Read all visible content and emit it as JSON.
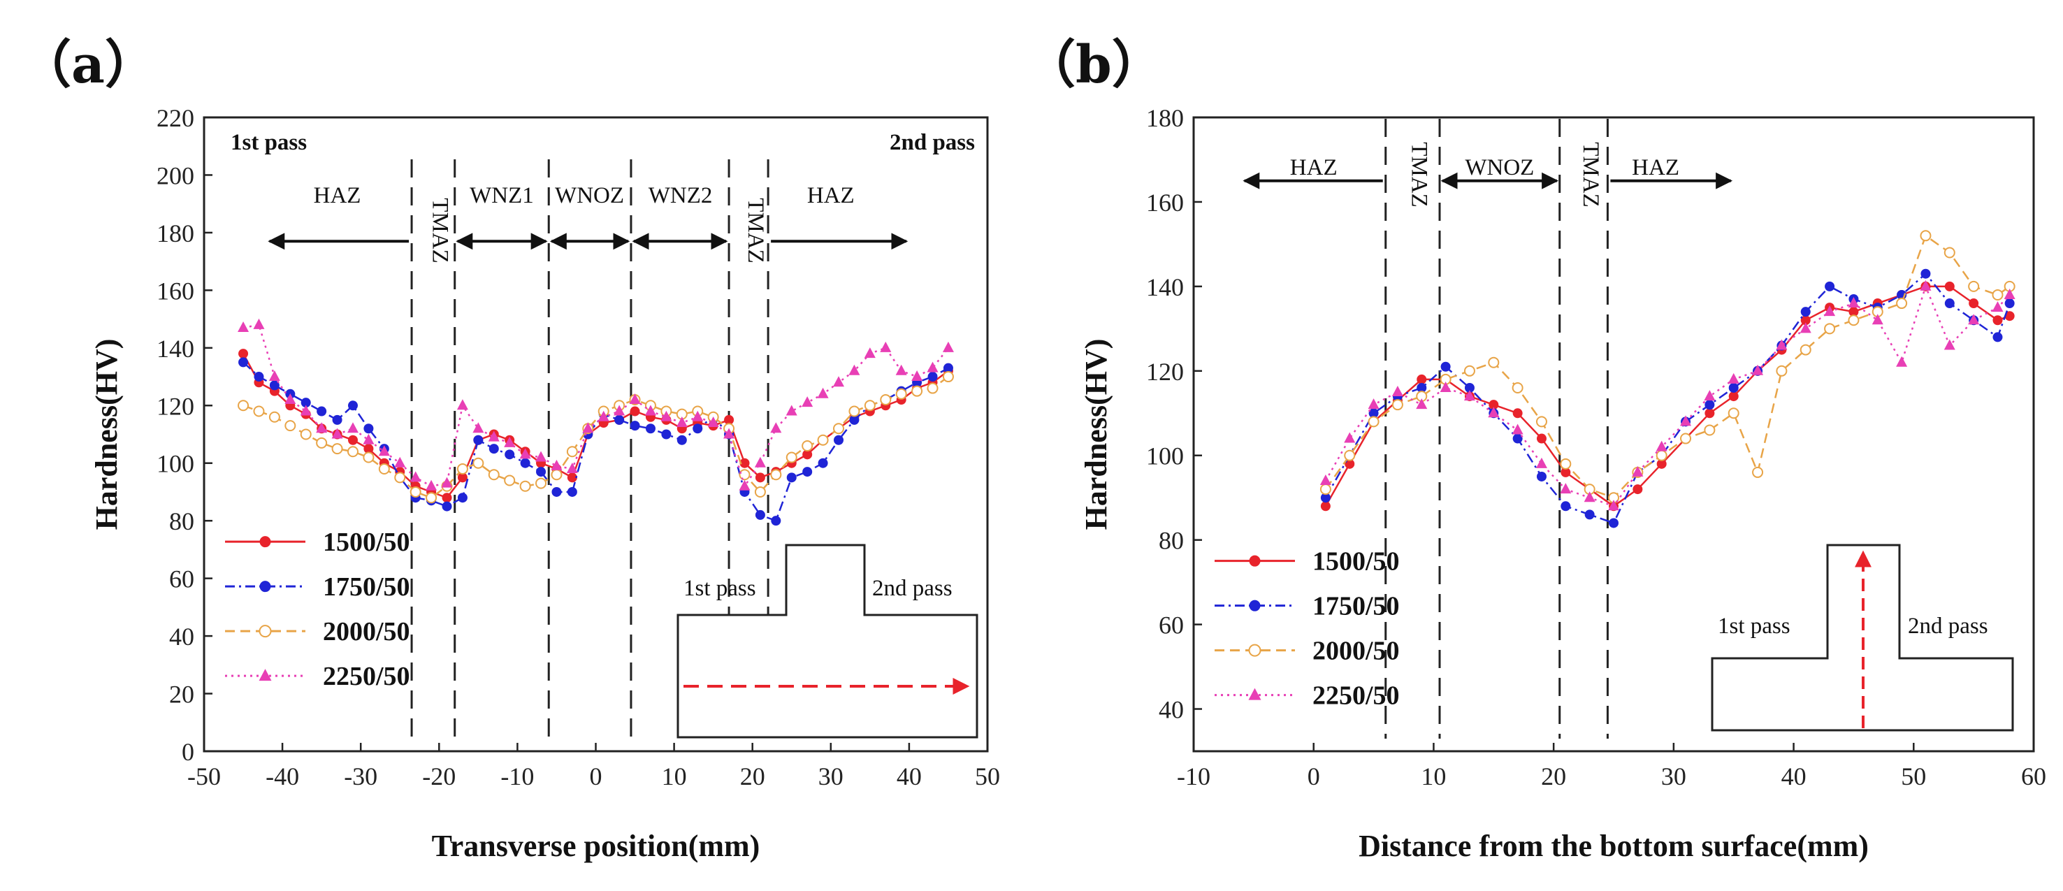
{
  "chart_data": [
    {
      "type": "line",
      "panel_label": "（a）",
      "xlabel": "Transverse position(mm)",
      "ylabel": "Hardness(HV)",
      "xlim": [
        -50,
        50
      ],
      "ylim": [
        0,
        220
      ],
      "xticks": [
        "-50",
        "-40",
        "-30",
        "-20",
        "-10",
        "0",
        "10",
        "20",
        "30",
        "40",
        "50"
      ],
      "yticks": [
        "0",
        "20",
        "40",
        "60",
        "80",
        "100",
        "120",
        "140",
        "160",
        "180",
        "200",
        "220"
      ],
      "corner_labels": {
        "left": "1st pass",
        "right": "2nd pass"
      },
      "zone_boundaries": [
        -23.5,
        -18,
        -6,
        4.5,
        17,
        22
      ],
      "zones": [
        {
          "label": "HAZ",
          "x": -33,
          "vertical": false,
          "arrow": [
            -42,
            -23.5
          ]
        },
        {
          "label": "TMAZ",
          "x": -20.8,
          "vertical": true
        },
        {
          "label": "WNZ1",
          "x": -12,
          "vertical": false,
          "arrow": [
            -18,
            -6
          ],
          "both": true
        },
        {
          "label": "WNOZ",
          "x": -0.8,
          "vertical": false,
          "arrow": [
            -6,
            4.5
          ],
          "both": true
        },
        {
          "label": "WNZ2",
          "x": 10.8,
          "vertical": false,
          "arrow": [
            4.5,
            17
          ],
          "both": true
        },
        {
          "label": "TMAZ",
          "x": 19.5,
          "vertical": true
        },
        {
          "label": "HAZ",
          "x": 30,
          "vertical": false,
          "arrow": [
            22,
            40
          ]
        }
      ],
      "inset": {
        "left_label": "1st pass",
        "right_label": "2nd pass",
        "arrow": "horizontal"
      },
      "series": [
        {
          "name": "1500/50",
          "color": "#e8232b",
          "marker": "circle",
          "dash": "solid",
          "x": [
            -45,
            -43,
            -41,
            -39,
            -37,
            -35,
            -33,
            -31,
            -29,
            -27,
            -25,
            -23,
            -21,
            -19,
            -17,
            -15,
            -13,
            -11,
            -9,
            -7,
            -5,
            -3,
            -1,
            1,
            3,
            5,
            7,
            9,
            11,
            13,
            15,
            17,
            19,
            21,
            23,
            25,
            27,
            29,
            31,
            33,
            35,
            37,
            39,
            41,
            43,
            45
          ],
          "y": [
            138,
            128,
            125,
            120,
            117,
            112,
            110,
            108,
            105,
            100,
            97,
            92,
            90,
            88,
            95,
            108,
            110,
            108,
            104,
            100,
            98,
            95,
            110,
            114,
            115,
            118,
            116,
            115,
            112,
            114,
            113,
            115,
            100,
            95,
            97,
            100,
            103,
            108,
            112,
            116,
            118,
            120,
            122,
            126,
            128,
            132
          ]
        },
        {
          "name": "1750/50",
          "color": "#1f24d6",
          "marker": "circle",
          "dash": "dashdot",
          "x": [
            -45,
            -43,
            -41,
            -39,
            -37,
            -35,
            -33,
            -31,
            -29,
            -27,
            -25,
            -23,
            -21,
            -19,
            -17,
            -15,
            -13,
            -11,
            -9,
            -7,
            -5,
            -3,
            -1,
            1,
            3,
            5,
            7,
            9,
            11,
            13,
            15,
            17,
            19,
            21,
            23,
            25,
            27,
            29,
            31,
            33,
            35,
            37,
            39,
            41,
            43,
            45
          ],
          "y": [
            135,
            130,
            127,
            124,
            121,
            118,
            115,
            120,
            112,
            105,
            95,
            88,
            87,
            85,
            88,
            108,
            105,
            103,
            100,
            97,
            90,
            90,
            110,
            117,
            115,
            113,
            112,
            110,
            108,
            112,
            116,
            110,
            90,
            82,
            80,
            95,
            97,
            100,
            108,
            115,
            120,
            122,
            125,
            128,
            130,
            133
          ]
        },
        {
          "name": "2000/50",
          "color": "#e8a447",
          "marker": "open-circle",
          "dash": "dash",
          "x": [
            -45,
            -43,
            -41,
            -39,
            -37,
            -35,
            -33,
            -31,
            -29,
            -27,
            -25,
            -23,
            -21,
            -19,
            -17,
            -15,
            -13,
            -11,
            -9,
            -7,
            -5,
            -3,
            -1,
            1,
            3,
            5,
            7,
            9,
            11,
            13,
            15,
            17,
            19,
            21,
            23,
            25,
            27,
            29,
            31,
            33,
            35,
            37,
            39,
            41,
            43,
            45
          ],
          "y": [
            120,
            118,
            116,
            113,
            110,
            107,
            105,
            104,
            102,
            98,
            95,
            90,
            88,
            92,
            98,
            100,
            96,
            94,
            92,
            93,
            96,
            104,
            112,
            118,
            120,
            122,
            120,
            118,
            117,
            118,
            116,
            112,
            96,
            90,
            96,
            102,
            106,
            108,
            112,
            118,
            120,
            122,
            124,
            125,
            126,
            130
          ]
        },
        {
          "name": "2250/50",
          "color": "#e83fb5",
          "marker": "triangle",
          "dash": "dot",
          "x": [
            -45,
            -43,
            -41,
            -39,
            -37,
            -35,
            -33,
            -31,
            -29,
            -27,
            -25,
            -23,
            -21,
            -19,
            -17,
            -15,
            -13,
            -11,
            -9,
            -7,
            -5,
            -3,
            -1,
            1,
            3,
            5,
            7,
            9,
            11,
            13,
            15,
            17,
            19,
            21,
            23,
            25,
            27,
            29,
            31,
            33,
            35,
            37,
            39,
            41,
            43,
            45
          ],
          "y": [
            147,
            148,
            130,
            122,
            118,
            112,
            110,
            112,
            108,
            104,
            100,
            95,
            92,
            93,
            120,
            112,
            109,
            107,
            103,
            102,
            99,
            98,
            112,
            116,
            118,
            122,
            118,
            116,
            114,
            116,
            114,
            110,
            92,
            100,
            112,
            118,
            121,
            124,
            128,
            132,
            138,
            140,
            132,
            130,
            133,
            140
          ]
        }
      ]
    },
    {
      "type": "line",
      "panel_label": "（b）",
      "xlabel": "Distance from the bottom surface(mm)",
      "ylabel": "Hardness(HV)",
      "xlim": [
        -10,
        60
      ],
      "ylim": [
        30,
        180
      ],
      "xticks": [
        "-10",
        "0",
        "10",
        "20",
        "30",
        "40",
        "50",
        "60"
      ],
      "yticks": [
        "40",
        "60",
        "80",
        "100",
        "120",
        "140",
        "160",
        "180"
      ],
      "zone_boundaries": [
        6,
        10.5,
        20.5,
        24.5
      ],
      "zones": [
        {
          "label": "HAZ",
          "x": 0,
          "vertical": false,
          "arrow": [
            -6,
            6
          ]
        },
        {
          "label": "TMAZ",
          "x": 8.2,
          "vertical": true
        },
        {
          "label": "WNOZ",
          "x": 15.5,
          "vertical": false,
          "arrow": [
            10.5,
            20.5
          ],
          "both": true
        },
        {
          "label": "TMAZ",
          "x": 22.5,
          "vertical": true
        },
        {
          "label": "HAZ",
          "x": 28.5,
          "vertical": false,
          "arrow": [
            24.5,
            35
          ]
        }
      ],
      "inset": {
        "left_label": "1st pass",
        "right_label": "2nd pass",
        "arrow": "vertical"
      },
      "series": [
        {
          "name": "1500/50",
          "color": "#e8232b",
          "marker": "circle",
          "dash": "solid",
          "x": [
            1,
            3,
            5,
            7,
            9,
            11,
            13,
            15,
            17,
            19,
            21,
            23,
            25,
            27,
            29,
            31,
            33,
            35,
            37,
            39,
            41,
            43,
            45,
            47,
            49,
            51,
            53,
            55,
            57,
            58
          ],
          "y": [
            88,
            98,
            108,
            113,
            118,
            118,
            114,
            112,
            110,
            104,
            96,
            92,
            88,
            92,
            98,
            104,
            110,
            114,
            120,
            125,
            132,
            135,
            134,
            136,
            138,
            140,
            140,
            136,
            132,
            133
          ]
        },
        {
          "name": "1750/50",
          "color": "#1f24d6",
          "marker": "circle",
          "dash": "dashdot",
          "x": [
            1,
            3,
            5,
            7,
            9,
            11,
            13,
            15,
            17,
            19,
            21,
            23,
            25,
            27,
            29,
            31,
            33,
            35,
            37,
            39,
            41,
            43,
            45,
            47,
            49,
            51,
            53,
            55,
            57,
            58
          ],
          "y": [
            90,
            100,
            110,
            114,
            116,
            121,
            116,
            110,
            104,
            95,
            88,
            86,
            84,
            96,
            100,
            108,
            112,
            116,
            120,
            126,
            134,
            140,
            137,
            135,
            138,
            143,
            136,
            132,
            128,
            136
          ]
        },
        {
          "name": "2000/50",
          "color": "#e8a447",
          "marker": "open-circle",
          "dash": "dash",
          "x": [
            1,
            3,
            5,
            7,
            9,
            11,
            13,
            15,
            17,
            19,
            21,
            23,
            25,
            27,
            29,
            31,
            33,
            35,
            37,
            39,
            41,
            43,
            45,
            47,
            49,
            51,
            53,
            55,
            57,
            58
          ],
          "y": [
            92,
            100,
            108,
            112,
            114,
            118,
            120,
            122,
            116,
            108,
            98,
            92,
            90,
            96,
            100,
            104,
            106,
            110,
            96,
            120,
            125,
            130,
            132,
            134,
            136,
            152,
            148,
            140,
            138,
            140
          ]
        },
        {
          "name": "2250/50",
          "color": "#e83fb5",
          "marker": "triangle",
          "dash": "dot",
          "x": [
            1,
            3,
            5,
            7,
            9,
            11,
            13,
            15,
            17,
            19,
            21,
            23,
            25,
            27,
            29,
            31,
            33,
            35,
            37,
            39,
            41,
            43,
            45,
            47,
            49,
            51,
            53,
            55,
            57,
            58
          ],
          "y": [
            94,
            104,
            112,
            115,
            112,
            116,
            114,
            110,
            106,
            98,
            92,
            90,
            88,
            96,
            102,
            108,
            114,
            118,
            120,
            126,
            130,
            134,
            136,
            132,
            122,
            140,
            126,
            132,
            135,
            138
          ]
        }
      ]
    }
  ]
}
